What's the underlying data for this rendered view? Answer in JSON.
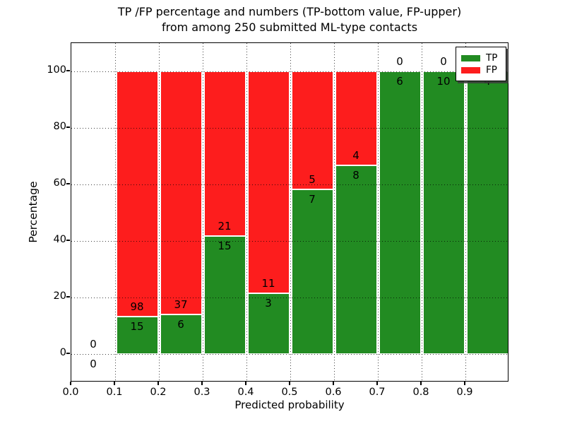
{
  "chart_data": {
    "type": "bar",
    "stacked": true,
    "title_lines": [
      "TP /FP percentage and numbers (TP-bottom value, FP-upper)",
      "from among 250 submitted ML-type contacts"
    ],
    "xlabel": "Predicted probability",
    "ylabel": "Percentage",
    "xlim": [
      0.0,
      1.0
    ],
    "ylim": [
      -10,
      110
    ],
    "grid": true,
    "total_contacts": 250,
    "xticks": [
      {
        "value": 0.0,
        "label": "0.0"
      },
      {
        "value": 0.1,
        "label": "0.1"
      },
      {
        "value": 0.2,
        "label": "0.2"
      },
      {
        "value": 0.3,
        "label": "0.3"
      },
      {
        "value": 0.4,
        "label": "0.4"
      },
      {
        "value": 0.5,
        "label": "0.5"
      },
      {
        "value": 0.6,
        "label": "0.6"
      },
      {
        "value": 0.7,
        "label": "0.7"
      },
      {
        "value": 0.8,
        "label": "0.8"
      },
      {
        "value": 0.9,
        "label": "0.9"
      }
    ],
    "yticks": [
      {
        "value": 0,
        "label": "0"
      },
      {
        "value": 20,
        "label": "20"
      },
      {
        "value": 40,
        "label": "40"
      },
      {
        "value": 60,
        "label": "60"
      },
      {
        "value": 80,
        "label": "80"
      },
      {
        "value": 100,
        "label": "100"
      }
    ],
    "legend": {
      "position": "upper right",
      "items": [
        {
          "label": "TP",
          "color": "#228b22"
        },
        {
          "label": "FP",
          "color": "#fd1d1d"
        }
      ]
    },
    "colors": {
      "tp": "#228b22",
      "fp": "#fd1d1d"
    },
    "bins": [
      {
        "range": [
          0.0,
          0.1
        ],
        "tp": 0,
        "fp": 0,
        "tp_pct": 0,
        "fp_pct": 0
      },
      {
        "range": [
          0.1,
          0.2
        ],
        "tp": 15,
        "fp": 98,
        "tp_pct": 13.27,
        "fp_pct": 86.73
      },
      {
        "range": [
          0.2,
          0.3
        ],
        "tp": 6,
        "fp": 37,
        "tp_pct": 13.95,
        "fp_pct": 86.05
      },
      {
        "range": [
          0.3,
          0.4
        ],
        "tp": 15,
        "fp": 21,
        "tp_pct": 41.67,
        "fp_pct": 58.33
      },
      {
        "range": [
          0.4,
          0.5
        ],
        "tp": 3,
        "fp": 11,
        "tp_pct": 21.43,
        "fp_pct": 78.57
      },
      {
        "range": [
          0.5,
          0.6
        ],
        "tp": 7,
        "fp": 5,
        "tp_pct": 58.33,
        "fp_pct": 41.67
      },
      {
        "range": [
          0.6,
          0.7
        ],
        "tp": 8,
        "fp": 4,
        "tp_pct": 66.67,
        "fp_pct": 33.33
      },
      {
        "range": [
          0.7,
          0.8
        ],
        "tp": 6,
        "fp": 0,
        "tp_pct": 100,
        "fp_pct": 0
      },
      {
        "range": [
          0.8,
          0.9
        ],
        "tp": 10,
        "fp": 0,
        "tp_pct": 100,
        "fp_pct": 0
      },
      {
        "range": [
          0.9,
          1.0
        ],
        "tp": 4,
        "fp": 0,
        "tp_pct": 100,
        "fp_pct": 0
      }
    ]
  }
}
